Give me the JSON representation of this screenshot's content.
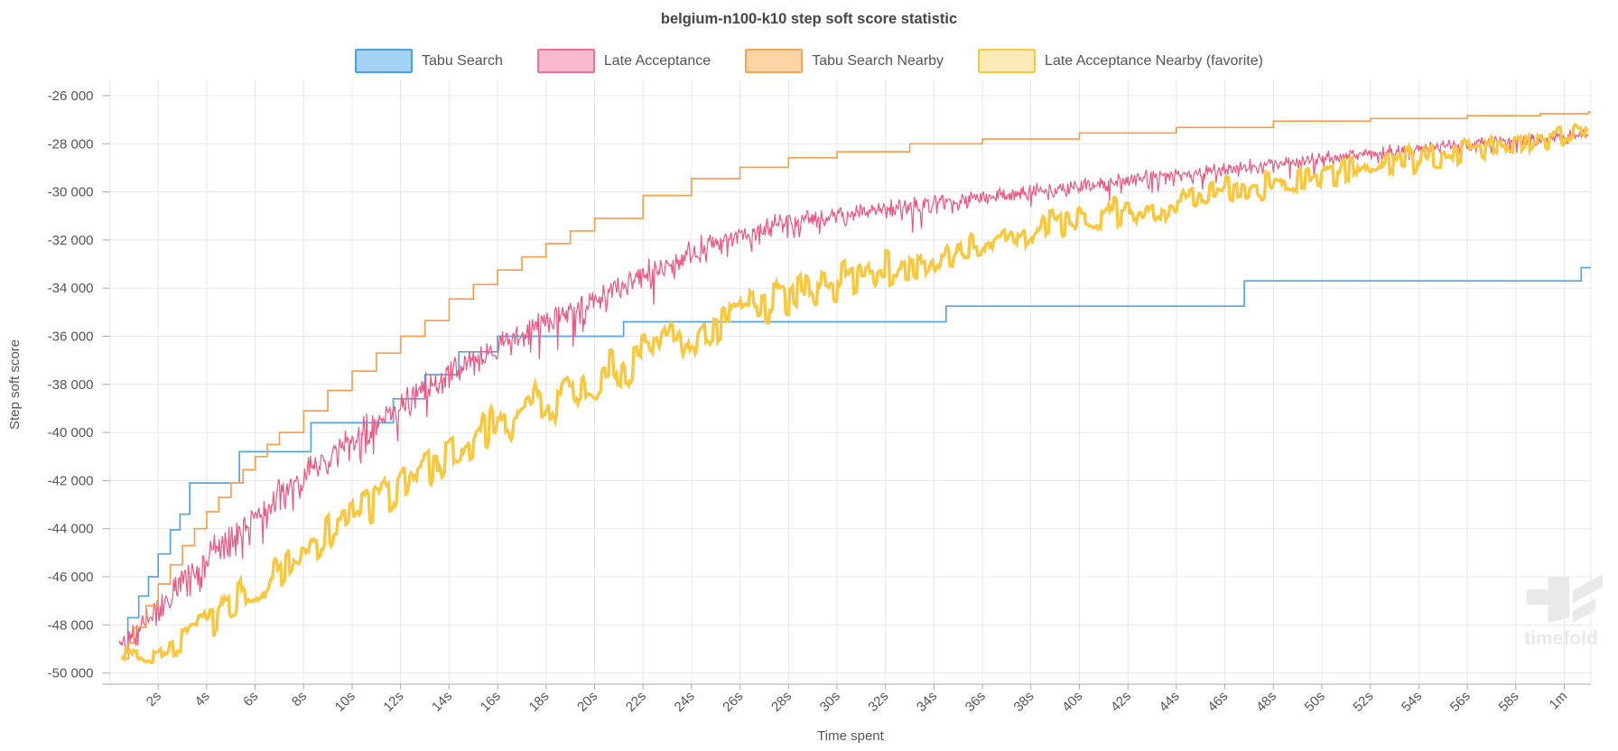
{
  "title": "belgium-n100-k10 step soft score statistic",
  "watermark": {
    "text": "timefold",
    "color": "#e9e9e9"
  },
  "chart_data": {
    "type": "line",
    "title": "belgium-n100-k10 step soft score statistic",
    "xlabel": "Time spent",
    "ylabel": "Step soft score",
    "grid": true,
    "grid_color": "#e8e8e8",
    "axis_color": "#aaaaaa",
    "legend_position": "top",
    "x_range_seconds": [
      0,
      61
    ],
    "y_range": [
      -50600,
      -25300
    ],
    "x_ticks": [
      {
        "seconds": 2,
        "label": "2s"
      },
      {
        "seconds": 4,
        "label": "4s"
      },
      {
        "seconds": 6,
        "label": "6s"
      },
      {
        "seconds": 8,
        "label": "8s"
      },
      {
        "seconds": 10,
        "label": "10s"
      },
      {
        "seconds": 12,
        "label": "12s"
      },
      {
        "seconds": 14,
        "label": "14s"
      },
      {
        "seconds": 16,
        "label": "16s"
      },
      {
        "seconds": 18,
        "label": "18s"
      },
      {
        "seconds": 20,
        "label": "20s"
      },
      {
        "seconds": 22,
        "label": "22s"
      },
      {
        "seconds": 24,
        "label": "24s"
      },
      {
        "seconds": 26,
        "label": "26s"
      },
      {
        "seconds": 28,
        "label": "28s"
      },
      {
        "seconds": 30,
        "label": "30s"
      },
      {
        "seconds": 32,
        "label": "32s"
      },
      {
        "seconds": 34,
        "label": "34s"
      },
      {
        "seconds": 36,
        "label": "36s"
      },
      {
        "seconds": 38,
        "label": "38s"
      },
      {
        "seconds": 40,
        "label": "40s"
      },
      {
        "seconds": 42,
        "label": "42s"
      },
      {
        "seconds": 44,
        "label": "44s"
      },
      {
        "seconds": 46,
        "label": "46s"
      },
      {
        "seconds": 48,
        "label": "48s"
      },
      {
        "seconds": 50,
        "label": "50s"
      },
      {
        "seconds": 52,
        "label": "52s"
      },
      {
        "seconds": 54,
        "label": "54s"
      },
      {
        "seconds": 56,
        "label": "56s"
      },
      {
        "seconds": 58,
        "label": "58s"
      },
      {
        "seconds": 60,
        "label": "1m"
      }
    ],
    "y_ticks": [
      {
        "value": -26000,
        "label": "-26 000"
      },
      {
        "value": -28000,
        "label": "-28 000"
      },
      {
        "value": -30000,
        "label": "-30 000"
      },
      {
        "value": -32000,
        "label": "-32 000"
      },
      {
        "value": -34000,
        "label": "-34 000"
      },
      {
        "value": -36000,
        "label": "-36 000"
      },
      {
        "value": -38000,
        "label": "-38 000"
      },
      {
        "value": -40000,
        "label": "-40 000"
      },
      {
        "value": -42000,
        "label": "-42 000"
      },
      {
        "value": -44000,
        "label": "-44 000"
      },
      {
        "value": -46000,
        "label": "-46 000"
      },
      {
        "value": -48000,
        "label": "-48 000"
      },
      {
        "value": -50000,
        "label": "-50 000"
      }
    ],
    "series": [
      {
        "name": "Tabu Search",
        "style": "step",
        "color": "#55a5e3",
        "legend_fill": "#a3d2f5",
        "legend_border": "#46a1e8",
        "stroke_width": 1.7,
        "points": [
          [
            0.6,
            -49150
          ],
          [
            0.75,
            -47700
          ],
          [
            1.2,
            -46800
          ],
          [
            1.6,
            -46000
          ],
          [
            2.0,
            -45050
          ],
          [
            2.5,
            -44050
          ],
          [
            2.9,
            -43400
          ],
          [
            3.3,
            -42100
          ],
          [
            5.35,
            -40800
          ],
          [
            8.3,
            -39600
          ],
          [
            11.7,
            -38600
          ],
          [
            13.0,
            -37600
          ],
          [
            14.4,
            -36650
          ],
          [
            16.0,
            -36000
          ],
          [
            21.2,
            -35400
          ],
          [
            34.5,
            -34750
          ],
          [
            46.8,
            -33700
          ],
          [
            60.7,
            -33150
          ]
        ]
      },
      {
        "name": "Late Acceptance",
        "style": "noisy",
        "color": "#f05580",
        "legend_fill": "#fab9cd",
        "legend_border": "#f46e99",
        "stroke_width": 1.2,
        "t_start": 0.4,
        "dt": 0.04,
        "spike_probability": 0.12,
        "spike_scale": 1.5,
        "clamp_min": -49600,
        "trend": [
          [
            0.4,
            -48700
          ],
          [
            1,
            -48400
          ],
          [
            2,
            -47300
          ],
          [
            3,
            -46300
          ],
          [
            4,
            -45300
          ],
          [
            5,
            -44400
          ],
          [
            6,
            -43500
          ],
          [
            7,
            -42700
          ],
          [
            8,
            -41900
          ],
          [
            9,
            -41100
          ],
          [
            10,
            -40300
          ],
          [
            11,
            -39600
          ],
          [
            12,
            -38900
          ],
          [
            13,
            -38200
          ],
          [
            14,
            -37600
          ],
          [
            15,
            -37000
          ],
          [
            16,
            -36400
          ],
          [
            17,
            -35900
          ],
          [
            18,
            -35400
          ],
          [
            19,
            -34900
          ],
          [
            20,
            -34400
          ],
          [
            21,
            -33900
          ],
          [
            22,
            -33500
          ],
          [
            23,
            -33000
          ],
          [
            24,
            -32500
          ],
          [
            25,
            -32100
          ],
          [
            26,
            -31800
          ],
          [
            27,
            -31500
          ],
          [
            28,
            -31300
          ],
          [
            29,
            -31100
          ],
          [
            30,
            -30950
          ],
          [
            32,
            -30700
          ],
          [
            34,
            -30450
          ],
          [
            36,
            -30250
          ],
          [
            38,
            -30000
          ],
          [
            40,
            -29750
          ],
          [
            42,
            -29500
          ],
          [
            44,
            -29300
          ],
          [
            46,
            -29100
          ],
          [
            48,
            -28800
          ],
          [
            50,
            -28600
          ],
          [
            52,
            -28400
          ],
          [
            54,
            -28200
          ],
          [
            56,
            -28000
          ],
          [
            58,
            -27850
          ],
          [
            60,
            -27700
          ],
          [
            61,
            -27600
          ]
        ],
        "noise": [
          [
            0.4,
            800
          ],
          [
            1,
            700
          ],
          [
            3,
            800
          ],
          [
            6,
            850
          ],
          [
            10,
            800
          ],
          [
            14,
            750
          ],
          [
            18,
            700
          ],
          [
            22,
            650
          ],
          [
            26,
            600
          ],
          [
            30,
            520
          ],
          [
            34,
            480
          ],
          [
            38,
            430
          ],
          [
            42,
            400
          ],
          [
            46,
            380
          ],
          [
            50,
            350
          ],
          [
            54,
            320
          ],
          [
            58,
            300
          ],
          [
            61,
            260
          ]
        ]
      },
      {
        "name": "Tabu Search Nearby",
        "style": "fine-step",
        "color": "#fa9f4c",
        "legend_fill": "#fcd4a5",
        "legend_border": "#faa355",
        "stroke_width": 1.7,
        "max_step": 650,
        "trend": [
          [
            0.55,
            -49400
          ],
          [
            1,
            -48100
          ],
          [
            1.5,
            -47200
          ],
          [
            2,
            -46300
          ],
          [
            2.5,
            -45500
          ],
          [
            3,
            -44700
          ],
          [
            4,
            -43300
          ],
          [
            5,
            -42100
          ],
          [
            6,
            -41000
          ],
          [
            7,
            -40000
          ],
          [
            8,
            -39100
          ],
          [
            9,
            -38250
          ],
          [
            10,
            -37450
          ],
          [
            11,
            -36700
          ],
          [
            12,
            -36000
          ],
          [
            13,
            -35350
          ],
          [
            14,
            -34450
          ],
          [
            16,
            -33250
          ],
          [
            18,
            -32150
          ],
          [
            20,
            -31100
          ],
          [
            22,
            -30150
          ],
          [
            24,
            -29450
          ],
          [
            26,
            -28980
          ],
          [
            28,
            -28580
          ],
          [
            30,
            -28330
          ],
          [
            33,
            -28000
          ],
          [
            36,
            -27800
          ],
          [
            40,
            -27550
          ],
          [
            44,
            -27320
          ],
          [
            48,
            -27060
          ],
          [
            52,
            -26950
          ],
          [
            56,
            -26830
          ],
          [
            59,
            -26750
          ],
          [
            61,
            -26680
          ]
        ]
      },
      {
        "name": "Late Acceptance Nearby (favorite)",
        "style": "blocky",
        "color": "#fac73d",
        "legend_fill": "#fdebb7",
        "legend_border": "#fac73d",
        "stroke_width": 3.4,
        "t_start": 0.5,
        "dt": 0.055,
        "hold_samples": 3,
        "clamp_min": -49650,
        "trend": [
          [
            0.5,
            -48900
          ],
          [
            1,
            -49250
          ],
          [
            2,
            -49300
          ],
          [
            2.6,
            -48900
          ],
          [
            3,
            -48550
          ],
          [
            4,
            -47850
          ],
          [
            5,
            -47100
          ],
          [
            6,
            -46400
          ],
          [
            7,
            -45700
          ],
          [
            8,
            -45000
          ],
          [
            9,
            -44300
          ],
          [
            10,
            -43600
          ],
          [
            11,
            -42950
          ],
          [
            12,
            -42300
          ],
          [
            13,
            -41650
          ],
          [
            14,
            -41000
          ],
          [
            15,
            -40400
          ],
          [
            16,
            -39800
          ],
          [
            17,
            -39250
          ],
          [
            18,
            -38700
          ],
          [
            19,
            -38200
          ],
          [
            20,
            -37700
          ],
          [
            21,
            -37250
          ],
          [
            22,
            -36800
          ],
          [
            23,
            -36400
          ],
          [
            24,
            -36000
          ],
          [
            25,
            -35550
          ],
          [
            26,
            -35100
          ],
          [
            27,
            -34750
          ],
          [
            28,
            -34400
          ],
          [
            29,
            -34100
          ],
          [
            30,
            -33800
          ],
          [
            31,
            -33500
          ],
          [
            32,
            -33250
          ],
          [
            33,
            -32950
          ],
          [
            34,
            -32700
          ],
          [
            35,
            -32400
          ],
          [
            36,
            -32150
          ],
          [
            37,
            -31900
          ],
          [
            38,
            -31650
          ],
          [
            39,
            -31400
          ],
          [
            40,
            -31200
          ],
          [
            41,
            -31000
          ],
          [
            42,
            -30800
          ],
          [
            43,
            -30600
          ],
          [
            44,
            -30400
          ],
          [
            45,
            -30200
          ],
          [
            46,
            -30000
          ],
          [
            47,
            -29850
          ],
          [
            48,
            -29650
          ],
          [
            49,
            -29450
          ],
          [
            50,
            -29300
          ],
          [
            51,
            -29100
          ],
          [
            52,
            -28950
          ],
          [
            53,
            -28800
          ],
          [
            54,
            -28600
          ],
          [
            55,
            -28400
          ],
          [
            56,
            -28200
          ],
          [
            57,
            -28050
          ],
          [
            58,
            -27900
          ],
          [
            59,
            -27750
          ],
          [
            60,
            -27600
          ],
          [
            61,
            -27500
          ]
        ],
        "noise": [
          [
            0.5,
            500
          ],
          [
            1,
            350
          ],
          [
            2,
            350
          ],
          [
            3,
            700
          ],
          [
            5,
            800
          ],
          [
            8,
            850
          ],
          [
            12,
            850
          ],
          [
            16,
            900
          ],
          [
            20,
            900
          ],
          [
            24,
            850
          ],
          [
            28,
            800
          ],
          [
            32,
            750
          ],
          [
            36,
            700
          ],
          [
            40,
            650
          ],
          [
            44,
            620
          ],
          [
            48,
            600
          ],
          [
            52,
            580
          ],
          [
            56,
            520
          ],
          [
            59,
            480
          ],
          [
            61,
            420
          ]
        ]
      }
    ]
  }
}
